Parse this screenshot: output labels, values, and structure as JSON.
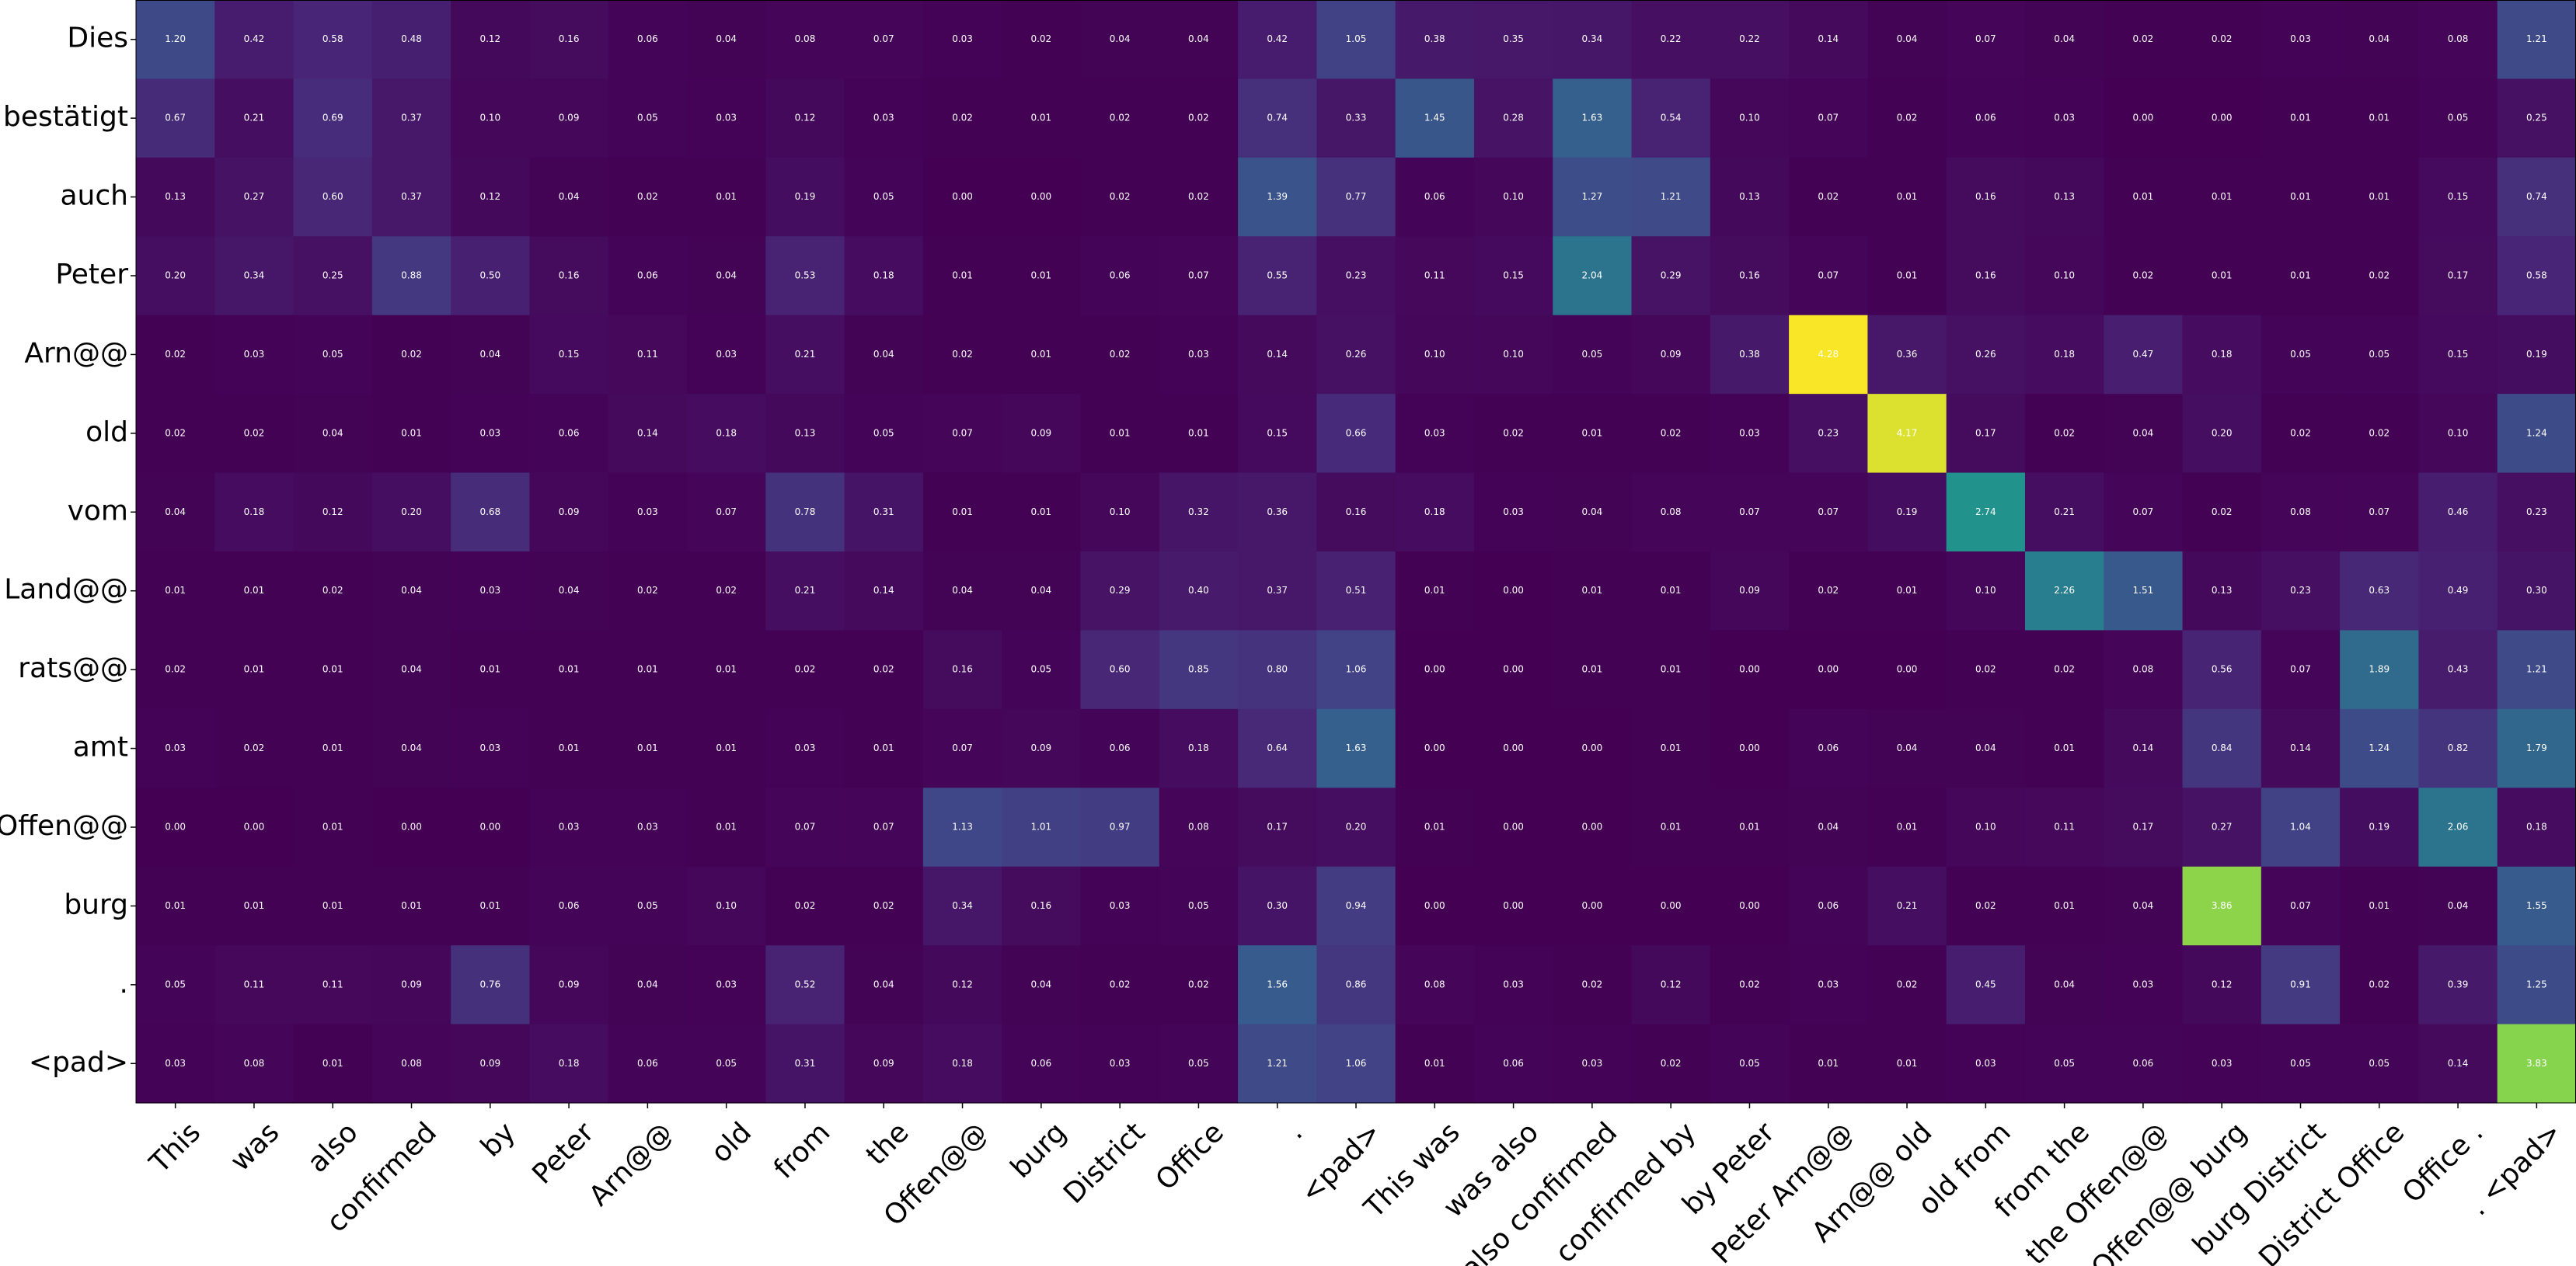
{
  "chart_data": {
    "type": "heatmap",
    "title": "",
    "xlabel": "",
    "ylabel": "",
    "colormap": "viridis",
    "color_range": [
      0,
      4.3
    ],
    "x_labels": [
      "This",
      "was",
      "also",
      "confirmed",
      "by",
      "Peter",
      "Arn@@",
      "old",
      "from",
      "the",
      "Offen@@",
      "burg",
      "District",
      "Office",
      ".",
      "<pad>",
      "This was",
      "was also",
      "also confirmed",
      "confirmed by",
      "by Peter",
      "Peter Arn@@",
      "Arn@@ old",
      "old from",
      "from the",
      "the Offen@@",
      "Offen@@ burg",
      "burg District",
      "District Office",
      "Office .",
      ". <pad>"
    ],
    "y_labels": [
      "Dies",
      "bestätigt",
      "auch",
      "Peter",
      "Arn@@",
      "old",
      "vom",
      "Land@@",
      "rats@@",
      "amt",
      "Offen@@",
      "burg",
      ".",
      "<pad>"
    ],
    "values": [
      [
        1.2,
        0.42,
        0.58,
        0.48,
        0.12,
        0.16,
        0.06,
        0.04,
        0.08,
        0.07,
        0.03,
        0.02,
        0.04,
        0.04,
        0.42,
        1.05,
        0.38,
        0.35,
        0.34,
        0.22,
        0.22,
        0.14,
        0.04,
        0.07,
        0.04,
        0.02,
        0.02,
        0.03,
        0.04,
        0.08,
        1.21
      ],
      [
        0.67,
        0.21,
        0.69,
        0.37,
        0.1,
        0.09,
        0.05,
        0.03,
        0.12,
        0.03,
        0.02,
        0.01,
        0.02,
        0.02,
        0.74,
        0.33,
        1.45,
        0.28,
        1.63,
        0.54,
        0.1,
        0.07,
        0.02,
        0.06,
        0.03,
        0.0,
        0.0,
        0.01,
        0.01,
        0.05,
        0.25
      ],
      [
        0.13,
        0.27,
        0.6,
        0.37,
        0.12,
        0.04,
        0.02,
        0.01,
        0.19,
        0.05,
        0.0,
        0.0,
        0.02,
        0.02,
        1.39,
        0.77,
        0.06,
        0.1,
        1.27,
        1.21,
        0.13,
        0.02,
        0.01,
        0.16,
        0.13,
        0.01,
        0.01,
        0.01,
        0.01,
        0.15,
        0.74
      ],
      [
        0.2,
        0.34,
        0.25,
        0.88,
        0.5,
        0.16,
        0.06,
        0.04,
        0.53,
        0.18,
        0.01,
        0.01,
        0.06,
        0.07,
        0.55,
        0.23,
        0.11,
        0.15,
        2.04,
        0.29,
        0.16,
        0.07,
        0.01,
        0.16,
        0.1,
        0.02,
        0.01,
        0.01,
        0.02,
        0.17,
        0.58
      ],
      [
        0.02,
        0.03,
        0.05,
        0.02,
        0.04,
        0.15,
        0.11,
        0.03,
        0.21,
        0.04,
        0.02,
        0.01,
        0.02,
        0.03,
        0.14,
        0.26,
        0.1,
        0.1,
        0.05,
        0.09,
        0.38,
        4.28,
        0.36,
        0.26,
        0.18,
        0.47,
        0.18,
        0.05,
        0.05,
        0.15,
        0.19
      ],
      [
        0.02,
        0.02,
        0.04,
        0.01,
        0.03,
        0.06,
        0.14,
        0.18,
        0.13,
        0.05,
        0.07,
        0.09,
        0.01,
        0.01,
        0.15,
        0.66,
        0.03,
        0.02,
        0.01,
        0.02,
        0.03,
        0.23,
        4.17,
        0.17,
        0.02,
        0.04,
        0.2,
        0.02,
        0.02,
        0.1,
        1.24
      ],
      [
        0.04,
        0.18,
        0.12,
        0.2,
        0.68,
        0.09,
        0.03,
        0.07,
        0.78,
        0.31,
        0.01,
        0.01,
        0.1,
        0.32,
        0.36,
        0.16,
        0.18,
        0.03,
        0.04,
        0.08,
        0.07,
        0.07,
        0.19,
        2.74,
        0.21,
        0.07,
        0.02,
        0.08,
        0.07,
        0.46,
        0.23
      ],
      [
        0.01,
        0.01,
        0.02,
        0.04,
        0.03,
        0.04,
        0.02,
        0.02,
        0.21,
        0.14,
        0.04,
        0.04,
        0.29,
        0.4,
        0.37,
        0.51,
        0.01,
        0.0,
        0.01,
        0.01,
        0.09,
        0.02,
        0.01,
        0.1,
        2.26,
        1.51,
        0.13,
        0.23,
        0.63,
        0.49,
        0.3
      ],
      [
        0.02,
        0.01,
        0.01,
        0.04,
        0.01,
        0.01,
        0.01,
        0.01,
        0.02,
        0.02,
        0.16,
        0.05,
        0.6,
        0.85,
        0.8,
        1.06,
        0.0,
        0.0,
        0.01,
        0.01,
        0.0,
        0.0,
        0.0,
        0.02,
        0.02,
        0.08,
        0.56,
        0.07,
        1.89,
        0.43,
        1.21
      ],
      [
        0.03,
        0.02,
        0.01,
        0.04,
        0.03,
        0.01,
        0.01,
        0.01,
        0.03,
        0.01,
        0.07,
        0.09,
        0.06,
        0.18,
        0.64,
        1.63,
        0.0,
        0.0,
        0.0,
        0.01,
        0.0,
        0.06,
        0.04,
        0.04,
        0.01,
        0.14,
        0.84,
        0.14,
        1.24,
        0.82,
        1.79
      ],
      [
        0.0,
        0.0,
        0.01,
        0.0,
        0.0,
        0.03,
        0.03,
        0.01,
        0.07,
        0.07,
        1.13,
        1.01,
        0.97,
        0.08,
        0.17,
        0.2,
        0.01,
        0.0,
        0.0,
        0.01,
        0.01,
        0.04,
        0.01,
        0.1,
        0.11,
        0.17,
        0.27,
        1.04,
        0.19,
        2.06,
        0.18
      ],
      [
        0.01,
        0.01,
        0.01,
        0.01,
        0.01,
        0.06,
        0.05,
        0.1,
        0.02,
        0.02,
        0.34,
        0.16,
        0.03,
        0.05,
        0.3,
        0.94,
        0.0,
        0.0,
        0.0,
        0.0,
        0.0,
        0.06,
        0.21,
        0.02,
        0.01,
        0.04,
        3.86,
        0.07,
        0.01,
        0.04,
        1.55
      ],
      [
        0.05,
        0.11,
        0.11,
        0.09,
        0.76,
        0.09,
        0.04,
        0.03,
        0.52,
        0.04,
        0.12,
        0.04,
        0.02,
        0.02,
        1.56,
        0.86,
        0.08,
        0.03,
        0.02,
        0.12,
        0.02,
        0.03,
        0.02,
        0.45,
        0.04,
        0.03,
        0.12,
        0.91,
        0.02,
        0.39,
        1.25
      ],
      [
        0.03,
        0.08,
        0.01,
        0.08,
        0.09,
        0.18,
        0.06,
        0.05,
        0.31,
        0.09,
        0.18,
        0.06,
        0.03,
        0.05,
        1.21,
        1.06,
        0.01,
        0.06,
        0.03,
        0.02,
        0.05,
        0.01,
        0.01,
        0.03,
        0.05,
        0.06,
        0.03,
        0.05,
        0.05,
        0.14,
        3.83
      ]
    ]
  }
}
